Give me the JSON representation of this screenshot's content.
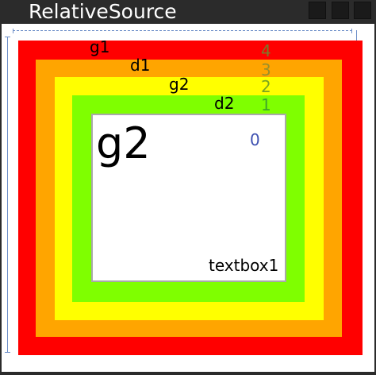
{
  "window": {
    "title": "RelativeSource"
  },
  "labels": {
    "g1": "g1",
    "d1": "d1",
    "g2": "g2",
    "d2": "d2"
  },
  "levels": {
    "l4": "4",
    "l3": "3",
    "l2": "2",
    "l1": "1",
    "l0": "0"
  },
  "textbox": {
    "big_text": "g2",
    "name": "textbox1"
  },
  "colors": {
    "red": "#ff0000",
    "orange": "#ffa500",
    "yellow": "#ffff00",
    "green": "#7fff00",
    "level4": "#7a7a2a",
    "level3": "#9a8f2a",
    "level2": "#7aa51f",
    "level1": "#3ea52a",
    "level0": "#3c4fb0"
  }
}
